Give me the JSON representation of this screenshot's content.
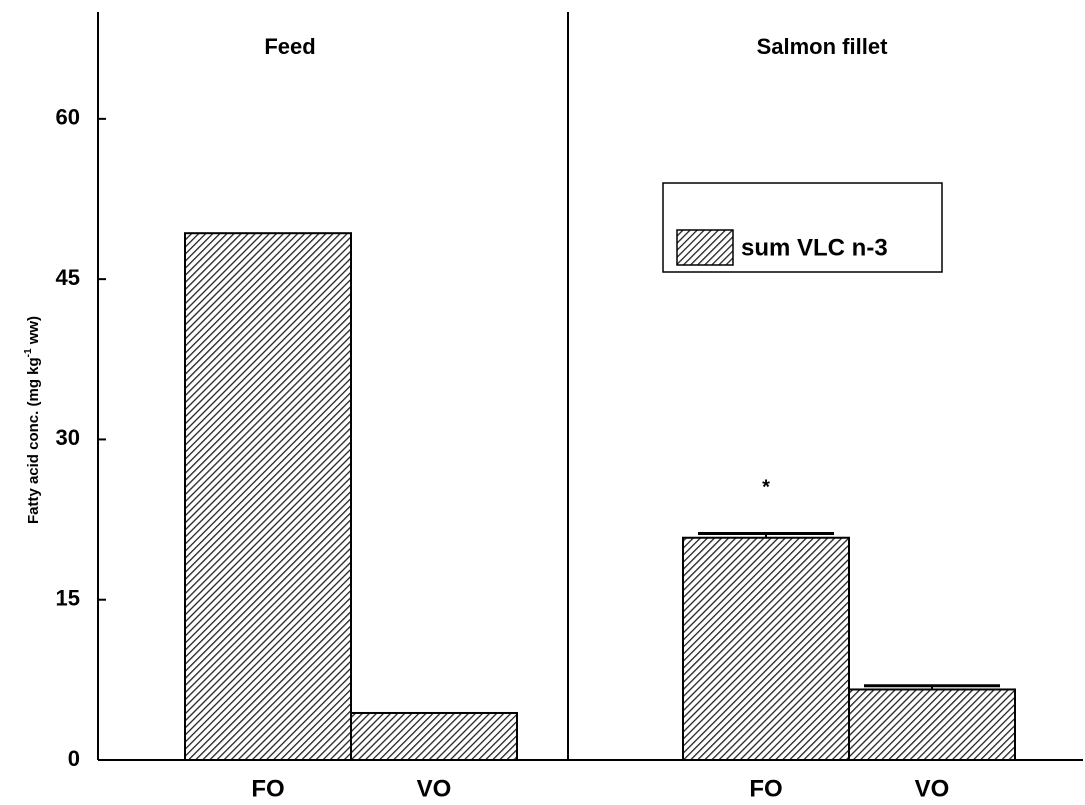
{
  "chart_data": [
    {
      "type": "bar",
      "title": "Feed",
      "categories": [
        "FO",
        "VO"
      ],
      "ylabel": [
        "Fatty acid conc. (mg kg",
        "-1",
        " ww)"
      ],
      "series": [
        {
          "color": "#222222",
          "values": [
            49.3,
            4.4
          ]
        }
      ],
      "ylim": [
        0,
        70
      ],
      "yticks": [
        0,
        15,
        30,
        45,
        60
      ]
    },
    {
      "type": "bar",
      "title": "Salmon fillet",
      "categories": [
        "FO",
        "VO"
      ],
      "series": [
        {
          "name": "sum VLC n-3",
          "color": "#222222",
          "values": [
            20.8,
            6.6
          ],
          "errors": [
            0.4,
            0.35
          ]
        }
      ],
      "annotations": [
        "*"
      ],
      "legend": "upper right",
      "ylim": [
        0,
        70
      ]
    }
  ]
}
